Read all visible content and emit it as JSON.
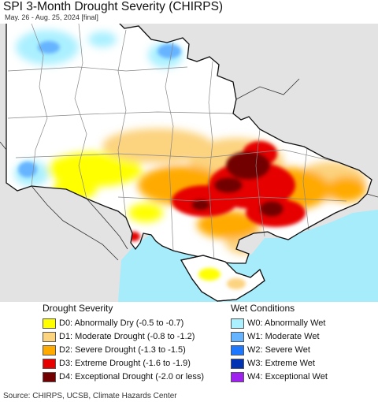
{
  "title": "SPI 3-Month Drought Severity (CHIRPS)",
  "subtitle": "May. 26 - Aug. 25, 2024 [final]",
  "legend": {
    "drought": {
      "heading": "Drought Severity",
      "items": [
        {
          "label": "D0: Abnormally Dry (-0.5 to -0.7)",
          "color": "#ffff00"
        },
        {
          "label": "D1: Moderate Drought (-0.8 to -1.2)",
          "color": "#fcd37f"
        },
        {
          "label": "D2: Severe Drought (-1.3 to -1.5)",
          "color": "#ffaa00"
        },
        {
          "label": "D3: Extreme Drought (-1.6 to -1.9)",
          "color": "#e60000"
        },
        {
          "label": "D4: Exceptional Drought (-2.0 or less)",
          "color": "#730000"
        }
      ]
    },
    "wet": {
      "heading": "Wet Conditions",
      "items": [
        {
          "label": "W0: Abnormally Wet",
          "color": "#aaf0ff"
        },
        {
          "label": "W1: Moderate Wet",
          "color": "#66b3ff"
        },
        {
          "label": "W2: Severe Wet",
          "color": "#1e78ff"
        },
        {
          "label": "W3: Extreme Wet",
          "color": "#0032b4"
        },
        {
          "label": "W4: Exceptional Wet",
          "color": "#a020f0"
        }
      ]
    }
  },
  "source": "Source: CHIRPS, UCSB, Climate Hazards Center",
  "colors": {
    "neighbors": "#e3e3e3",
    "land": "#ffffff",
    "sea": "#a6ecfb",
    "border": "#111111",
    "admin": "#888888"
  }
}
